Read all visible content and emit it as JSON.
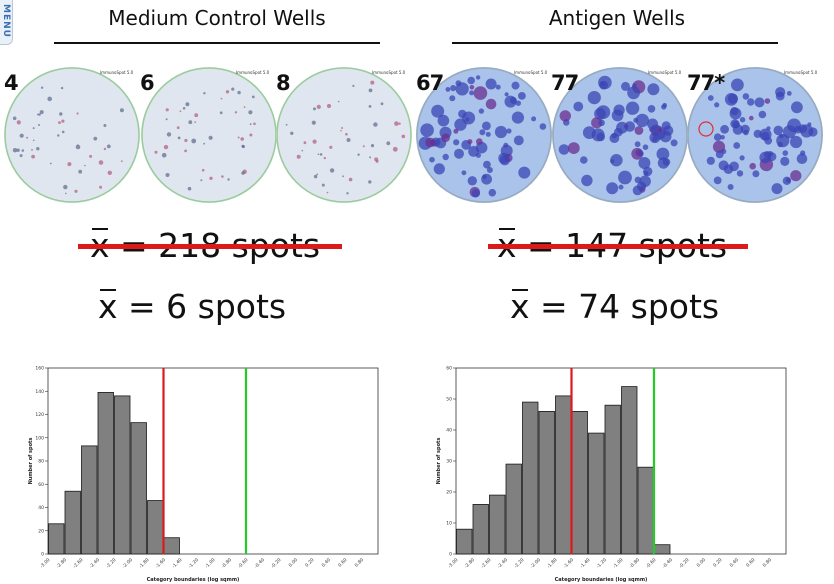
{
  "menu": {
    "label": "MENU"
  },
  "headings": {
    "medium": "Medium Control Wells",
    "antigen": "Antigen Wells"
  },
  "wells": {
    "medium": [
      {
        "label": "4"
      },
      {
        "label": "6"
      },
      {
        "label": "8"
      }
    ],
    "antigen": [
      {
        "label": "67"
      },
      {
        "label": "77"
      },
      {
        "label": "77*"
      }
    ],
    "stamp": "ImmunoSpot 5.0"
  },
  "stats": {
    "medium_old": {
      "symbol": "x",
      "text": " = 218 spots"
    },
    "medium_new": {
      "symbol": "x",
      "text": " = 6 spots"
    },
    "antigen_old": {
      "symbol": "x",
      "text": " = 147 spots"
    },
    "antigen_new": {
      "symbol": "x",
      "text": " = 74 spots"
    }
  },
  "colors": {
    "red_line": "#dd1a1a",
    "green_line": "#22cc22",
    "bar_fill": "#808080",
    "bar_edge": "#1a1a1a"
  },
  "chart_data": [
    {
      "type": "bar",
      "xlabel": "Category boundaries (log sqmm)",
      "ylabel": "Number of spots",
      "categories": [
        "-3.00",
        "-2.80",
        "-2.60",
        "-2.40",
        "-2.20",
        "-2.00",
        "-1.80",
        "-1.60",
        "-1.40",
        "-1.20",
        "-1.00",
        "-0.80",
        "-0.60",
        "-0.40",
        "-0.20",
        "0.00",
        "0.20",
        "0.40",
        "0.60",
        "0.80"
      ],
      "values": [
        26,
        54,
        93,
        139,
        136,
        113,
        46,
        14,
        0,
        0,
        0,
        0,
        0,
        0,
        0,
        0,
        0,
        0,
        0,
        0
      ],
      "yticks": [
        0,
        20,
        40,
        60,
        80,
        100,
        120,
        140,
        160
      ],
      "ylim": [
        0,
        160
      ],
      "red_line_x": -1.6,
      "green_line_x": -0.6
    },
    {
      "type": "bar",
      "xlabel": "Category boundaries (log sqmm)",
      "ylabel": "Number of spots",
      "categories": [
        "-3.00",
        "-2.80",
        "-2.60",
        "-2.40",
        "-2.20",
        "-2.00",
        "-1.80",
        "-1.60",
        "-1.40",
        "-1.20",
        "-1.00",
        "-0.80",
        "-0.60",
        "-0.40",
        "-0.20",
        "0.00",
        "0.20",
        "0.40",
        "0.60",
        "0.80"
      ],
      "values": [
        8,
        16,
        19,
        29,
        49,
        46,
        51,
        46,
        39,
        48,
        54,
        28,
        3,
        0,
        0,
        0,
        0,
        0,
        0,
        0
      ],
      "yticks": [
        0,
        10,
        20,
        30,
        40,
        50,
        60
      ],
      "ylim": [
        0,
        60
      ],
      "red_line_x": -1.6,
      "green_line_x": -0.6
    }
  ]
}
